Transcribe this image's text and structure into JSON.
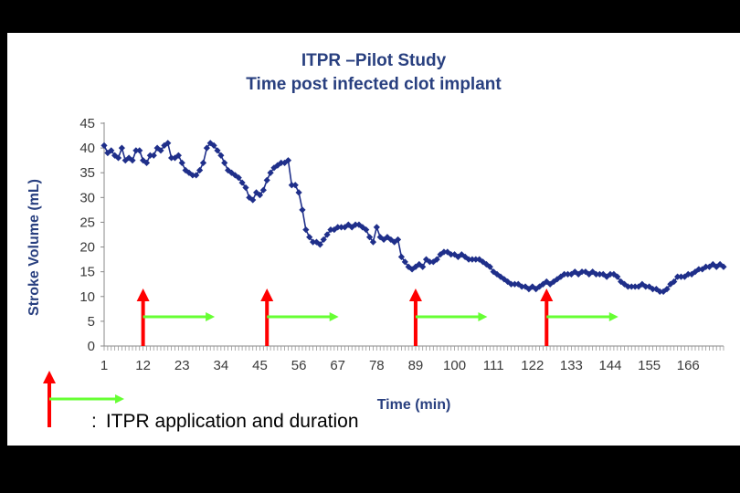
{
  "chart_data": {
    "type": "line",
    "title": "ITPR –Pilot Study",
    "subtitle": "Time post infected clot implant",
    "xlabel": "Time (min)",
    "ylabel": "Stroke Volume (mL)",
    "ylim": [
      0,
      45
    ],
    "yticks": [
      0,
      5,
      10,
      15,
      20,
      25,
      30,
      35,
      40,
      45
    ],
    "xlim": [
      1,
      176
    ],
    "xticks": [
      1,
      12,
      23,
      34,
      45,
      56,
      67,
      78,
      89,
      100,
      111,
      122,
      133,
      144,
      155,
      166
    ],
    "colors": {
      "series": "#1f2f8a",
      "axis_text": "#3a3a3a",
      "title": "#283f7f",
      "application": "#ff0000",
      "duration": "#66ff33"
    },
    "series": [
      {
        "name": "Stroke Volume",
        "points": [
          [
            1,
            40.5
          ],
          [
            2,
            39.0
          ],
          [
            3,
            39.5
          ],
          [
            4,
            38.5
          ],
          [
            5,
            38.0
          ],
          [
            6,
            40.0
          ],
          [
            7,
            37.5
          ],
          [
            8,
            38.0
          ],
          [
            9,
            37.5
          ],
          [
            10,
            39.5
          ],
          [
            11,
            39.5
          ],
          [
            12,
            37.5
          ],
          [
            13,
            37.0
          ],
          [
            14,
            38.5
          ],
          [
            15,
            38.5
          ],
          [
            16,
            40.0
          ],
          [
            17,
            39.5
          ],
          [
            18,
            40.5
          ],
          [
            19,
            41.0
          ],
          [
            20,
            38.0
          ],
          [
            21,
            38.0
          ],
          [
            22,
            38.5
          ],
          [
            23,
            37.0
          ],
          [
            24,
            35.5
          ],
          [
            25,
            35.0
          ],
          [
            26,
            34.5
          ],
          [
            27,
            34.5
          ],
          [
            28,
            35.5
          ],
          [
            29,
            37.0
          ],
          [
            30,
            40.0
          ],
          [
            31,
            41.0
          ],
          [
            32,
            40.5
          ],
          [
            33,
            39.5
          ],
          [
            34,
            38.5
          ],
          [
            35,
            37.0
          ],
          [
            36,
            35.5
          ],
          [
            37,
            35.0
          ],
          [
            38,
            34.5
          ],
          [
            39,
            34.0
          ],
          [
            40,
            33.0
          ],
          [
            41,
            32.0
          ],
          [
            42,
            30.0
          ],
          [
            43,
            29.5
          ],
          [
            44,
            31.0
          ],
          [
            45,
            30.5
          ],
          [
            46,
            31.5
          ],
          [
            47,
            33.5
          ],
          [
            48,
            35.0
          ],
          [
            49,
            36.0
          ],
          [
            50,
            36.5
          ],
          [
            51,
            37.0
          ],
          [
            52,
            37.0
          ],
          [
            53,
            37.5
          ],
          [
            54,
            32.5
          ],
          [
            55,
            32.5
          ],
          [
            56,
            31.0
          ],
          [
            57,
            27.5
          ],
          [
            58,
            23.5
          ],
          [
            59,
            22.0
          ],
          [
            60,
            21.0
          ],
          [
            61,
            21.0
          ],
          [
            62,
            20.5
          ],
          [
            63,
            21.5
          ],
          [
            64,
            22.5
          ],
          [
            65,
            23.5
          ],
          [
            66,
            23.5
          ],
          [
            67,
            24.0
          ],
          [
            68,
            24.0
          ],
          [
            69,
            24.0
          ],
          [
            70,
            24.5
          ],
          [
            71,
            24.0
          ],
          [
            72,
            24.5
          ],
          [
            73,
            24.5
          ],
          [
            74,
            24.0
          ],
          [
            75,
            23.5
          ],
          [
            76,
            22.0
          ],
          [
            77,
            21.0
          ],
          [
            78,
            24.0
          ],
          [
            79,
            22.0
          ],
          [
            80,
            21.5
          ],
          [
            81,
            22.0
          ],
          [
            82,
            21.5
          ],
          [
            83,
            21.0
          ],
          [
            84,
            21.5
          ],
          [
            85,
            18.0
          ],
          [
            86,
            17.0
          ],
          [
            87,
            16.0
          ],
          [
            88,
            15.5
          ],
          [
            89,
            16.0
          ],
          [
            90,
            16.5
          ],
          [
            91,
            16.0
          ],
          [
            92,
            17.5
          ],
          [
            93,
            17.0
          ],
          [
            94,
            17.0
          ],
          [
            95,
            17.5
          ],
          [
            96,
            18.5
          ],
          [
            97,
            19.0
          ],
          [
            98,
            19.0
          ],
          [
            99,
            18.5
          ],
          [
            100,
            18.5
          ],
          [
            101,
            18.0
          ],
          [
            102,
            18.5
          ],
          [
            103,
            18.0
          ],
          [
            104,
            17.5
          ],
          [
            105,
            17.5
          ],
          [
            106,
            17.5
          ],
          [
            107,
            17.5
          ],
          [
            108,
            17.0
          ],
          [
            109,
            16.5
          ],
          [
            110,
            16.0
          ],
          [
            111,
            15.0
          ],
          [
            112,
            14.5
          ],
          [
            113,
            14.0
          ],
          [
            114,
            13.5
          ],
          [
            115,
            13.0
          ],
          [
            116,
            12.5
          ],
          [
            117,
            12.5
          ],
          [
            118,
            12.5
          ],
          [
            119,
            12.0
          ],
          [
            120,
            12.0
          ],
          [
            121,
            11.5
          ],
          [
            122,
            12.0
          ],
          [
            123,
            11.5
          ],
          [
            124,
            12.0
          ],
          [
            125,
            12.5
          ],
          [
            126,
            13.0
          ],
          [
            127,
            12.5
          ],
          [
            128,
            13.0
          ],
          [
            129,
            13.5
          ],
          [
            130,
            14.0
          ],
          [
            131,
            14.5
          ],
          [
            132,
            14.5
          ],
          [
            133,
            14.5
          ],
          [
            134,
            15.0
          ],
          [
            135,
            14.5
          ],
          [
            136,
            15.0
          ],
          [
            137,
            15.0
          ],
          [
            138,
            14.5
          ],
          [
            139,
            15.0
          ],
          [
            140,
            14.5
          ],
          [
            141,
            14.5
          ],
          [
            142,
            14.5
          ],
          [
            143,
            14.0
          ],
          [
            144,
            14.5
          ],
          [
            145,
            14.5
          ],
          [
            146,
            14.0
          ],
          [
            147,
            13.0
          ],
          [
            148,
            12.5
          ],
          [
            149,
            12.0
          ],
          [
            150,
            12.0
          ],
          [
            151,
            12.0
          ],
          [
            152,
            12.0
          ],
          [
            153,
            12.5
          ],
          [
            154,
            12.0
          ],
          [
            155,
            12.0
          ],
          [
            156,
            11.5
          ],
          [
            157,
            11.5
          ],
          [
            158,
            11.0
          ],
          [
            159,
            11.0
          ],
          [
            160,
            11.5
          ],
          [
            161,
            12.5
          ],
          [
            162,
            13.0
          ],
          [
            163,
            14.0
          ],
          [
            164,
            14.0
          ],
          [
            165,
            14.0
          ],
          [
            166,
            14.5
          ],
          [
            167,
            14.5
          ],
          [
            168,
            15.0
          ],
          [
            169,
            15.5
          ],
          [
            170,
            15.5
          ],
          [
            171,
            16.0
          ],
          [
            172,
            16.0
          ],
          [
            173,
            16.5
          ],
          [
            174,
            16.0
          ],
          [
            175,
            16.5
          ],
          [
            176,
            16.0
          ]
        ]
      }
    ],
    "annotations": [
      {
        "application_time": 12,
        "duration_end": 32
      },
      {
        "application_time": 47,
        "duration_end": 67
      },
      {
        "application_time": 89,
        "duration_end": 109
      },
      {
        "application_time": 126,
        "duration_end": 146
      }
    ]
  },
  "legend": {
    "colon": ":",
    "text": "ITPR application and duration"
  }
}
